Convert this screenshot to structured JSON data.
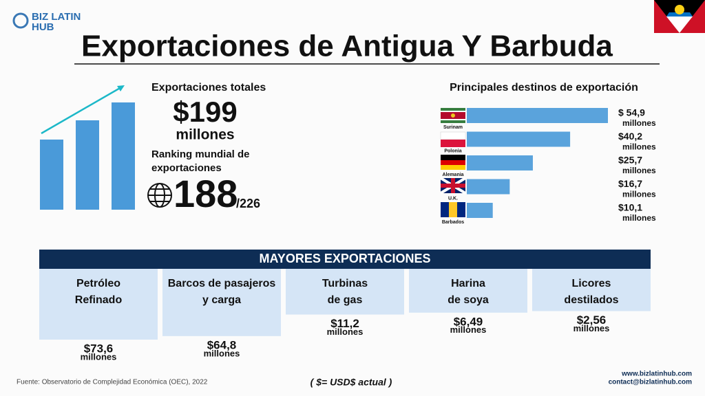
{
  "header": {
    "logo_top": "BIZ LATIN",
    "logo_bottom": "HUB",
    "title": "Exportaciones de Antigua Y Barbuda"
  },
  "totals": {
    "label": "Exportaciones totales",
    "amount": "$199",
    "unit": "millones",
    "ranking_label_1": "Ranking mundial de",
    "ranking_label_2": "exportaciones",
    "rank": "188",
    "rank_of": "/226"
  },
  "destinations": {
    "title": "Principales destinos de exportación",
    "categories": [
      "Surinam",
      "Polonia",
      "Alemania",
      "U.K.",
      "Barbados"
    ],
    "values": [
      54.9,
      40.2,
      25.7,
      16.7,
      10.1
    ],
    "value_labels": [
      "$ 54,9",
      "$40,2",
      "$25,7",
      "$16,7",
      "$10,1"
    ],
    "unit": "millones",
    "color": "#5aa3dc"
  },
  "major_exports": {
    "title": "MAYORES EXPORTACIONES",
    "items": [
      {
        "lines": [
          "Petróleo",
          "Refinado"
        ],
        "value": 73.6,
        "value_label": "$73,6"
      },
      {
        "lines": [
          "Barcos de pasajeros",
          "y carga"
        ],
        "value": 64.8,
        "value_label": "$64,8"
      },
      {
        "lines": [
          "Turbinas",
          "de gas"
        ],
        "value": 11.2,
        "value_label": "$11,2"
      },
      {
        "lines": [
          "Harina",
          "de soya"
        ],
        "value": 6.49,
        "value_label": "$6,49"
      },
      {
        "lines": [
          "Licores",
          "destilados"
        ],
        "value": 2.56,
        "value_label": "$2,56"
      }
    ],
    "unit": "millones"
  },
  "footer": {
    "source": "Fuente: Observatorio de Complejidad Económica (OEC), 2022",
    "note": "( $= USD$ actual )",
    "website": "www.bizlatinhub.com",
    "email": "contact@bizlatinhub.com"
  }
}
